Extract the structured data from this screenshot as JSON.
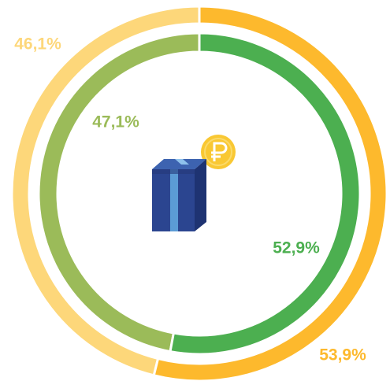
{
  "chart_data": {
    "type": "donut",
    "series": [
      {
        "values": [
          53.9,
          46.1
        ],
        "value_labels": [
          "53,9%",
          "46,1%"
        ],
        "colors": [
          "#FDB92D",
          "#FDD77A"
        ]
      },
      {
        "values": [
          52.9,
          47.1
        ],
        "value_labels": [
          "52,9%",
          "47,1%"
        ],
        "colors": [
          "#4CAF50",
          "#9BBB59"
        ]
      }
    ]
  }
}
